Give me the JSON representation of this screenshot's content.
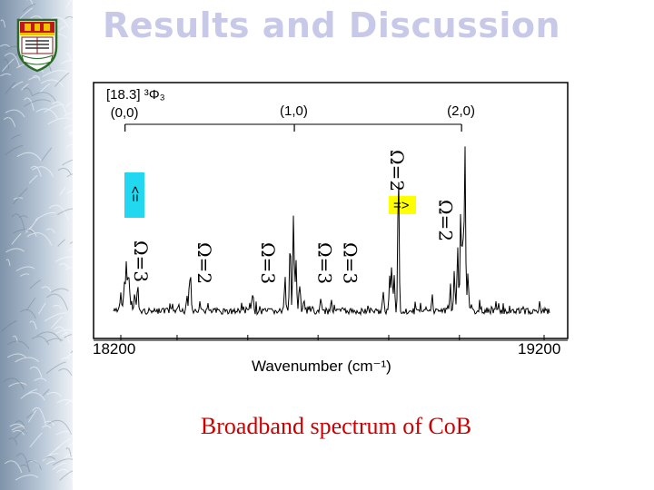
{
  "slide": {
    "title": "Results and Discussion",
    "caption": "Broadband spectrum of CoB"
  },
  "chart_data": {
    "type": "line",
    "xlabel": "Wavenumber (cm⁻¹)",
    "xlim": [
      18200,
      19200
    ],
    "x_tick_labels": [
      "18200",
      "19200"
    ],
    "x_ticks_minor": [
      18200,
      18333,
      18500,
      18666,
      18833,
      19000,
      19200
    ],
    "band_origin": {
      "label": "[18.3] ³Φ₃",
      "x": 18200
    },
    "vibronic_bands": [
      {
        "label": "(0,0)",
        "x": 18210
      },
      {
        "label": "(1,0)",
        "x": 18610
      },
      {
        "label": "(2,0)",
        "x": 19005
      }
    ],
    "omega_labels": [
      {
        "label": "Ω=3",
        "x": 18245
      },
      {
        "label": "Ω=2",
        "x": 18395
      },
      {
        "label": "Ω=3",
        "x": 18545
      },
      {
        "label": "Ω=3",
        "x": 18680
      },
      {
        "label": "Ω=3",
        "x": 18740
      },
      {
        "label": "Ω=2",
        "x": 18850
      },
      {
        "label": "Ω=2",
        "x": 18965
      }
    ],
    "arrows": [
      {
        "label": "<=",
        "color": "#22d7f0"
      },
      {
        "label": "=>",
        "color": "#ffff00"
      }
    ],
    "series": [
      {
        "peaks": [
          {
            "x": 18200,
            "height": 0.1
          },
          {
            "x": 18208,
            "height": 0.18
          },
          {
            "x": 18213,
            "height": 0.3
          },
          {
            "x": 18218,
            "height": 0.24
          },
          {
            "x": 18222,
            "height": 0.08
          },
          {
            "x": 18233,
            "height": 0.12
          },
          {
            "x": 18240,
            "height": 0.16
          },
          {
            "x": 18356,
            "height": 0.1
          },
          {
            "x": 18362,
            "height": 0.16
          },
          {
            "x": 18365,
            "height": 0.13
          },
          {
            "x": 18405,
            "height": 0.04
          },
          {
            "x": 18505,
            "height": 0.04
          },
          {
            "x": 18512,
            "height": 0.07
          },
          {
            "x": 18588,
            "height": 0.18
          },
          {
            "x": 18600,
            "height": 0.4
          },
          {
            "x": 18608,
            "height": 0.58
          },
          {
            "x": 18614,
            "height": 0.32
          },
          {
            "x": 18622,
            "height": 0.13
          },
          {
            "x": 18633,
            "height": 0.07
          },
          {
            "x": 18672,
            "height": 0.09
          },
          {
            "x": 18697,
            "height": 0.07
          },
          {
            "x": 18820,
            "height": 0.1
          },
          {
            "x": 18835,
            "height": 0.18
          },
          {
            "x": 18840,
            "height": 0.28
          },
          {
            "x": 18846,
            "height": 0.2
          },
          {
            "x": 18856,
            "height": 0.85
          },
          {
            "x": 18936,
            "height": 0.06
          },
          {
            "x": 18978,
            "height": 0.12
          },
          {
            "x": 18988,
            "height": 0.24
          },
          {
            "x": 18996,
            "height": 0.4
          },
          {
            "x": 19003,
            "height": 0.62
          },
          {
            "x": 19008,
            "height": 0.46
          },
          {
            "x": 19013,
            "height": 0.96
          },
          {
            "x": 19020,
            "height": 0.22
          }
        ]
      }
    ]
  }
}
